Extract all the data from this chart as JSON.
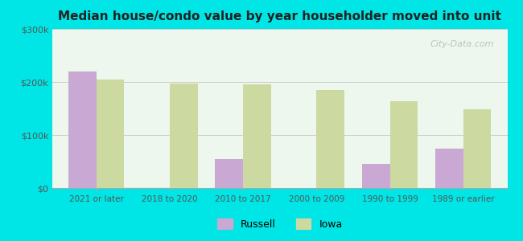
{
  "title": "Median house/condo value by year householder moved into unit",
  "categories": [
    "2021 or later",
    "2018 to 2020",
    "2010 to 2017",
    "2000 to 2009",
    "1990 to 1999",
    "1989 or earlier"
  ],
  "russell_values": [
    220000,
    0,
    55000,
    0,
    45000,
    75000
  ],
  "iowa_values": [
    205000,
    197000,
    195000,
    185000,
    163000,
    148000
  ],
  "russell_color": "#c9a8d4",
  "iowa_color": "#ccd9a0",
  "background_outer": "#00e5e5",
  "background_inner_top": "#e8f5f0",
  "background_inner_bottom": "#d8efd0",
  "ylim": [
    0,
    300000
  ],
  "yticks": [
    0,
    100000,
    200000,
    300000
  ],
  "ytick_labels": [
    "$0",
    "$100k",
    "$200k",
    "$300k"
  ],
  "bar_width": 0.38,
  "legend_labels": [
    "Russell",
    "Iowa"
  ],
  "watermark": "City-Data.com"
}
